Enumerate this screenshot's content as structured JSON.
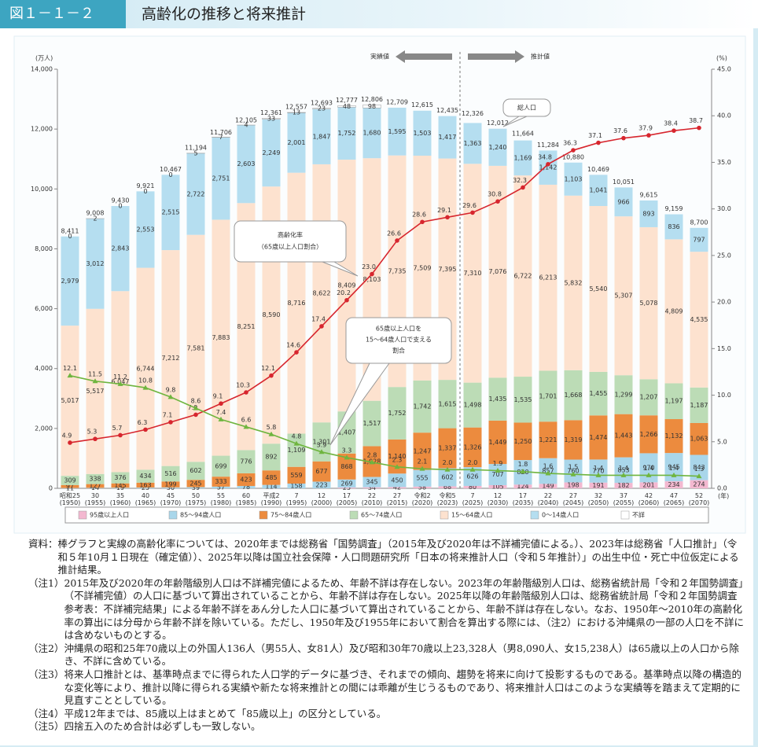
{
  "header": {
    "figure_no": "図１－１－２",
    "title": "高齢化の推移と将来推計"
  },
  "chart_data": {
    "type": "bar",
    "stacked": true,
    "grid": false,
    "y_unit": "(万人)",
    "y2_unit": "(%)",
    "x_unit": "(年)",
    "categories": [
      "昭和25(1950)",
      "30(1955)",
      "35(1960)",
      "40(1965)",
      "45(1970)",
      "50(1975)",
      "55(1980)",
      "60(1985)",
      "平成2(1990)",
      "7(1995)",
      "12(2000)",
      "17(2005)",
      "22(2010)",
      "27(2015)",
      "令和2(2020)",
      "令和5(2023)",
      "7(2025)",
      "12(2030)",
      "17(2035)",
      "22(2040)",
      "27(2045)",
      "32(2050)",
      "37(2055)",
      "42(2060)",
      "47(2065)",
      "52(2070)"
    ],
    "series": [
      {
        "name": "95歳以上人口",
        "color": "#f3b8d0",
        "values": [
          null,
          null,
          null,
          null,
          null,
          null,
          null,
          null,
          null,
          null,
          null,
          25,
          34,
          42,
          58,
          68,
          80,
          105,
          124,
          149,
          198,
          191,
          182,
          201,
          234,
          274
        ]
      },
      {
        "name": "85～94歳人口",
        "color": "#a9d6ea",
        "values": [
          11,
          14,
          19,
          25,
          30,
          39,
          57,
          78,
          114,
          158,
          223,
          269,
          345,
          450,
          555,
          602,
          626,
          707,
          820,
          857,
          760,
          770,
          853,
          970,
          945,
          843
        ]
      },
      {
        "name": "75～84歳人口",
        "color": "#ec8b3e",
        "values": [
          97,
          127,
          145,
          163,
          199,
          245,
          333,
          423,
          485,
          559,
          677,
          868,
          1028,
          1140,
          1247,
          1337,
          1326,
          1449,
          1250,
          1221,
          1319,
          1474,
          1443,
          1266,
          1132,
          1063
        ],
        "value_labels": [
          "97",
          "127",
          "145",
          "163",
          "199",
          "245",
          "333",
          "423",
          "485",
          "559",
          "677",
          "868",
          "1,028",
          "1,140",
          "1,247",
          "1,337",
          "1,326",
          "1,449",
          "1,250",
          "1,221",
          "1,319",
          "1,474",
          "1,443",
          "1,266",
          "1,132",
          "1,063"
        ]
      },
      {
        "name": "65～74歳人口",
        "color": "#bcdcb6",
        "values": [
          309,
          338,
          376,
          434,
          516,
          602,
          699,
          776,
          892,
          1109,
          1301,
          1407,
          1517,
          1752,
          1742,
          1615,
          1498,
          1435,
          1535,
          1701,
          1668,
          1455,
          1299,
          1207,
          1197,
          1187
        ],
        "value_labels": [
          "309",
          "338",
          "376",
          "434",
          "516",
          "602",
          "699",
          "776",
          "892",
          "1,109",
          "1,301",
          "1,407",
          "1,517",
          "1,752",
          "1,742",
          "1,615",
          "1,498",
          "1,435",
          "1,535",
          "1,701",
          "1,668",
          "1,455",
          "1,299",
          "1,207",
          "1,197",
          "1,187"
        ]
      },
      {
        "name": "15～64歳人口",
        "color": "#fde2cf",
        "values": [
          5017,
          5517,
          6047,
          6744,
          7212,
          7581,
          7883,
          8251,
          8590,
          8716,
          8622,
          8409,
          8103,
          7735,
          7509,
          7395,
          7310,
          7076,
          6722,
          6213,
          5832,
          5540,
          5307,
          5078,
          4809,
          4535
        ],
        "value_labels": [
          "5,017",
          "5,517",
          "6,047",
          "6,744",
          "7,212",
          "7,581",
          "7,883",
          "8,251",
          "8,590",
          "8,716",
          "8,622",
          "8,409",
          "8,103",
          "7,735",
          "7,509",
          "7,395",
          "7,310",
          "7,076",
          "6,722",
          "6,213",
          "5,832",
          "5,540",
          "5,307",
          "5,078",
          "4,809",
          "4,535"
        ]
      },
      {
        "name": "0～14歳人口",
        "color": "#b5def0",
        "values": [
          2979,
          3012,
          2843,
          2553,
          2515,
          2722,
          2751,
          2603,
          2249,
          2001,
          1847,
          1752,
          1680,
          1595,
          1503,
          1417,
          1363,
          1240,
          1169,
          1142,
          1103,
          1041,
          966,
          893,
          836,
          797
        ],
        "value_labels": [
          "2,979",
          "3,012",
          "2,843",
          "2,553",
          "2,515",
          "2,722",
          "2,751",
          "2,603",
          "2,249",
          "2,001",
          "1,847",
          "1,752",
          "1,680",
          "1,595",
          "1,503",
          "1,417",
          "1,363",
          "1,240",
          "1,169",
          "1,142",
          "1,103",
          "1,041",
          "966",
          "893",
          "836",
          "797"
        ]
      },
      {
        "name": "不詳",
        "color": "#ffffff",
        "values": [
          0,
          2,
          0,
          0,
          0,
          5,
          7,
          4,
          33,
          13,
          23,
          48,
          98,
          null,
          null,
          null,
          null,
          null,
          null,
          null,
          null,
          null,
          null,
          null,
          null,
          null
        ]
      }
    ],
    "totals": [
      8411,
      9008,
      9430,
      9921,
      10467,
      11194,
      11706,
      12105,
      12361,
      12557,
      12693,
      12777,
      12806,
      12709,
      12615,
      12435,
      12326,
      12012,
      11664,
      11284,
      10880,
      10469,
      10051,
      9615,
      9159,
      8700
    ],
    "totals_labels": [
      "8,411",
      "9,008",
      "9,430",
      "9,921",
      "10,467",
      "11,194",
      "11,706",
      "12,105",
      "12,361",
      "12,557",
      "12,693",
      "12,777",
      "12,806",
      "12,709",
      "12,615",
      "12,435",
      "12,326",
      "12,012",
      "11,664",
      "11,284",
      "10,880",
      "10,469",
      "10,051",
      "9,615",
      "9,159",
      "8,700"
    ],
    "line_series": [
      {
        "color": "#d7262e",
        "axis": "y2",
        "values": [
          4.9,
          5.3,
          5.7,
          6.3,
          7.1,
          7.9,
          9.1,
          10.3,
          12.1,
          14.6,
          17.4,
          20.2,
          23.0,
          26.6,
          28.6,
          29.1,
          29.6,
          30.8,
          32.3,
          34.8,
          36.3,
          37.1,
          37.6,
          37.9,
          38.4,
          38.7
        ],
        "value_labels": [
          "4.9",
          "5.3",
          "5.7",
          "6.3",
          "7.1",
          "7.9",
          "9.1",
          "10.3",
          "12.1",
          "14.6",
          "17.4",
          "20.2",
          "23.0",
          "26.6",
          "28.6",
          "29.1",
          "29.6",
          "30.8",
          "32.3",
          "34.8",
          "36.3",
          "37.1",
          "37.6",
          "37.9",
          "38.4",
          "38.7"
        ]
      },
      {
        "color": "#6fb53f",
        "axis": "y2",
        "values": [
          12.1,
          11.5,
          11.2,
          10.8,
          9.8,
          8.6,
          7.4,
          6.6,
          5.8,
          4.8,
          3.9,
          3.3,
          2.8,
          2.3,
          2.1,
          2.0,
          2.0,
          1.9,
          1.8,
          1.6,
          1.5,
          1.4,
          1.4,
          1.4,
          1.4,
          1.3
        ],
        "value_labels": [
          "12.1",
          "11.5",
          "11.2",
          "10.8",
          "9.8",
          "8.6",
          "7.4",
          "6.6",
          "5.8",
          "4.8",
          "3.9",
          "3.3",
          "2.8",
          "2.3",
          "2.1",
          "2.0",
          "2.0",
          "1.9",
          "1.8",
          "1.6",
          "1.5",
          "1.4",
          "1.4",
          "1.4",
          "1.4",
          "1.3"
        ]
      }
    ],
    "ylim": [
      0,
      14000
    ],
    "yticks": [
      0,
      {
        "value": 2000,
        "label": "2,000"
      },
      {
        "value": 4000,
        "label": "4,000"
      },
      {
        "value": 6000,
        "label": "6,000"
      },
      {
        "value": 8000,
        "label": "8,000"
      },
      {
        "value": 10000,
        "label": "10,000"
      },
      {
        "value": 12000,
        "label": "12,000"
      },
      {
        "value": 14000,
        "label": "14,000"
      }
    ],
    "y2lim": [
      0,
      45
    ],
    "y2ticks": [
      {
        "value": 0,
        "label": "0.0"
      },
      {
        "value": 5,
        "label": "5.0"
      },
      {
        "value": 10,
        "label": "10.0"
      },
      {
        "value": 15,
        "label": "15.0"
      },
      {
        "value": 20,
        "label": "20.0"
      },
      {
        "value": 25,
        "label": "25.0"
      },
      {
        "value": 30,
        "label": "30.0"
      },
      {
        "value": 35,
        "label": "35.0"
      },
      {
        "value": 40,
        "label": "40.0"
      },
      {
        "value": 45,
        "label": "45.0"
      }
    ],
    "annotations": {
      "actual": "実績値",
      "projected": "推計値",
      "total": "総人口",
      "aging_rate": [
        "高齢化率",
        "（65歳以上人口割合）"
      ],
      "support_ratio": [
        "65歳以上人口を",
        "15～64歳人口で支える",
        "割合"
      ]
    }
  },
  "notes": [
    {
      "label": "資料：",
      "text": "棒グラフと実線の高齢化率については、2020年までは総務省「国勢調査」（2015年及び2020年は不詳補完値による。）、2023年は総務省「人口推計」（令和５年10月１日現在（確定値））、2025年以降は国立社会保障・人口問題研究所「日本の将来推計人口（令和５年推計）」の出生中位・死亡中位仮定による推計結果。"
    },
    {
      "label": "（注1）",
      "text": "2015年及び2020年の年齢階級別人口は不詳補完値によるため、年齢不詳は存在しない。2023年の年齢階級別人口は、総務省統計局「令和２年国勢調査」（不詳補完値）の人口に基づいて算出されていることから、年齢不詳は存在しない。2025年以降の年齢階級別人口は、総務省統計局「令和２年国勢調査　参考表：不詳補完結果」による年齢不詳をあん分した人口に基づいて算出されていることから、年齢不詳は存在しない。なお、1950年～2010年の高齢化率の算出には分母から年齢不詳を除いている。ただし、1950年及び1955年において割合を算出する際には、（注2）における沖縄県の一部の人口を不詳には含めないものとする。"
    },
    {
      "label": "（注2）",
      "text": "沖縄県の昭和25年70歳以上の外国人136人（男55人、女81人）及び昭和30年70歳以上23,328人（男8,090人、女15,238人）は65歳以上の人口から除き、不詳に含めている。"
    },
    {
      "label": "（注3）",
      "text": "将来人口推計とは、基準時点までに得られた人口学的データに基づき、それまでの傾向、趨勢を将来に向けて投影するものである。基準時点以降の構造的な変化等により、推計以降に得られる実績や新たな将来推計との間には乖離が生じうるものであり、将来推計人口はこのような実績等を踏まえて定期的に見直すこととしている。"
    },
    {
      "label": "（注4）",
      "text": "平成12年までは、85歳以上はまとめて「85歳以上」の区分としている。"
    },
    {
      "label": "（注5）",
      "text": "四捨五入のため合計は必ずしも一致しない。"
    }
  ]
}
